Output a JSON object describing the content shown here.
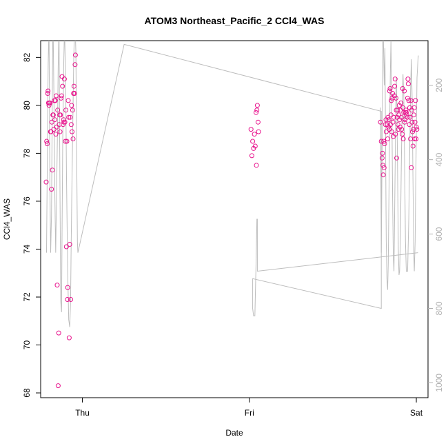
{
  "chart_data": {
    "type": "scatter",
    "title": "ATOM3 Northeast_Pacific_2 CCl4_WAS",
    "xlabel": "Date",
    "ylabel": "CCl4_WAS",
    "x_ticks": [
      {
        "day": 1,
        "label": "Thu"
      },
      {
        "day": 2,
        "label": "Fri"
      },
      {
        "day": 3,
        "label": "Sat"
      }
    ],
    "x_range": [
      0.75,
      3.07
    ],
    "y_range": [
      67.8,
      82.7
    ],
    "y_ticks": [
      68,
      70,
      72,
      74,
      76,
      78,
      80,
      82
    ],
    "y2_range": [
      80,
      1040
    ],
    "y2_ticks": [
      200,
      400,
      600,
      800,
      1000
    ],
    "y2_reversed": true,
    "point_color": "#e8128c",
    "line_color": "#bdbdbd",
    "grid": false,
    "series": [
      {
        "kind": "points",
        "points": [
          [
            0.783,
            76.8
          ],
          [
            0.786,
            78.5
          ],
          [
            0.789,
            78.4
          ],
          [
            0.792,
            80.5
          ],
          [
            0.794,
            80.6
          ],
          [
            0.797,
            80.1
          ],
          [
            0.8,
            80.0
          ],
          [
            0.803,
            80.1
          ],
          [
            0.806,
            80.1
          ],
          [
            0.809,
            78.9
          ],
          [
            0.812,
            78.9
          ],
          [
            0.815,
            76.5
          ],
          [
            0.817,
            79.3
          ],
          [
            0.82,
            77.3
          ],
          [
            0.823,
            79.6
          ],
          [
            0.826,
            79.6
          ],
          [
            0.829,
            79.0
          ],
          [
            0.832,
            80.2
          ],
          [
            0.835,
            79.4
          ],
          [
            0.838,
            80.2
          ],
          [
            0.841,
            78.8
          ],
          [
            0.843,
            80.4
          ],
          [
            0.846,
            79.1
          ],
          [
            0.849,
            72.5
          ],
          [
            0.852,
            79.8
          ],
          [
            0.855,
            68.3
          ],
          [
            0.858,
            70.5
          ],
          [
            0.861,
            79.2
          ],
          [
            0.864,
            79.6
          ],
          [
            0.866,
            78.9
          ],
          [
            0.869,
            79.6
          ],
          [
            0.872,
            80.3
          ],
          [
            0.875,
            80.4
          ],
          [
            0.878,
            81.2
          ],
          [
            0.881,
            80.8
          ],
          [
            0.884,
            79.2
          ],
          [
            0.887,
            79.4
          ],
          [
            0.889,
            79.3
          ],
          [
            0.892,
            81.1
          ],
          [
            0.895,
            79.3
          ],
          [
            0.898,
            78.5
          ],
          [
            0.901,
            79.8
          ],
          [
            0.904,
            74.1
          ],
          [
            0.907,
            78.5
          ],
          [
            0.91,
            71.9
          ],
          [
            0.912,
            72.4
          ],
          [
            0.915,
            80.2
          ],
          [
            0.918,
            79.5
          ],
          [
            0.921,
            70.3
          ],
          [
            0.924,
            74.2
          ],
          [
            0.927,
            79.5
          ],
          [
            0.93,
            71.9
          ],
          [
            0.933,
            79.2
          ],
          [
            0.935,
            80.0
          ],
          [
            0.938,
            78.9
          ],
          [
            0.941,
            79.8
          ],
          [
            0.944,
            78.6
          ],
          [
            0.947,
            80.5
          ],
          [
            0.95,
            80.8
          ],
          [
            0.953,
            80.5
          ],
          [
            0.956,
            81.7
          ],
          [
            0.958,
            82.1
          ],
          [
            2.01,
            79.0
          ],
          [
            2.015,
            77.9
          ],
          [
            2.02,
            78.5
          ],
          [
            2.025,
            78.2
          ],
          [
            2.03,
            78.8
          ],
          [
            2.035,
            78.3
          ],
          [
            2.04,
            79.7
          ],
          [
            2.042,
            77.5
          ],
          [
            2.045,
            79.8
          ],
          [
            2.048,
            80.0
          ],
          [
            2.052,
            79.3
          ],
          [
            2.055,
            78.9
          ],
          [
            2.785,
            79.3
          ],
          [
            2.79,
            78.5
          ],
          [
            2.795,
            77.8
          ],
          [
            2.797,
            78.0
          ],
          [
            2.8,
            77.5
          ],
          [
            2.802,
            77.1
          ],
          [
            2.805,
            78.5
          ],
          [
            2.807,
            77.4
          ],
          [
            2.81,
            78.4
          ],
          [
            2.815,
            79.2
          ],
          [
            2.818,
            79.4
          ],
          [
            2.82,
            78.9
          ],
          [
            2.825,
            79.2
          ],
          [
            2.828,
            78.6
          ],
          [
            2.83,
            79.5
          ],
          [
            2.833,
            79.1
          ],
          [
            2.835,
            79.4
          ],
          [
            2.838,
            79.0
          ],
          [
            2.84,
            80.6
          ],
          [
            2.843,
            80.7
          ],
          [
            2.845,
            79.2
          ],
          [
            2.848,
            79.6
          ],
          [
            2.85,
            80.2
          ],
          [
            2.853,
            78.9
          ],
          [
            2.855,
            80.3
          ],
          [
            2.858,
            80.5
          ],
          [
            2.86,
            79.3
          ],
          [
            2.862,
            78.7
          ],
          [
            2.865,
            79.5
          ],
          [
            2.868,
            80.4
          ],
          [
            2.87,
            80.8
          ],
          [
            2.873,
            81.1
          ],
          [
            2.875,
            78.8
          ],
          [
            2.878,
            80.3
          ],
          [
            2.88,
            79.8
          ],
          [
            2.882,
            77.8
          ],
          [
            2.885,
            79.5
          ],
          [
            2.888,
            79.8
          ],
          [
            2.89,
            79.2
          ],
          [
            2.893,
            79.0
          ],
          [
            2.895,
            79.6
          ],
          [
            2.898,
            80.0
          ],
          [
            2.9,
            79.4
          ],
          [
            2.902,
            79.1
          ],
          [
            2.905,
            79.8
          ],
          [
            2.908,
            80.1
          ],
          [
            2.91,
            79.5
          ],
          [
            2.912,
            79.0
          ],
          [
            2.915,
            78.8
          ],
          [
            2.918,
            80.7
          ],
          [
            2.92,
            79.9
          ],
          [
            2.922,
            78.6
          ],
          [
            2.925,
            79.7
          ],
          [
            2.928,
            80.6
          ],
          [
            2.93,
            79.3
          ],
          [
            2.932,
            79.4
          ],
          [
            2.935,
            79.7
          ],
          [
            2.938,
            79.8
          ],
          [
            2.94,
            79.7
          ],
          [
            2.942,
            79.6
          ],
          [
            2.945,
            79.5
          ],
          [
            2.948,
            80.3
          ],
          [
            2.95,
            81.1
          ],
          [
            2.952,
            80.9
          ],
          [
            2.955,
            80.2
          ],
          [
            2.958,
            79.2
          ],
          [
            2.96,
            79.9
          ],
          [
            2.962,
            79.5
          ],
          [
            2.965,
            78.6
          ],
          [
            2.968,
            80.2
          ],
          [
            2.97,
            77.4
          ],
          [
            2.972,
            79.8
          ],
          [
            2.975,
            79.3
          ],
          [
            2.977,
            78.9
          ],
          [
            2.98,
            78.3
          ],
          [
            2.982,
            79.0
          ],
          [
            2.985,
            79.6
          ],
          [
            2.988,
            79.9
          ],
          [
            2.99,
            78.6
          ],
          [
            2.992,
            79.3
          ],
          [
            2.995,
            80.2
          ],
          [
            2.998,
            78.6
          ],
          [
            3.0,
            79.1
          ],
          [
            3.003,
            79.0
          ]
        ]
      },
      {
        "kind": "altitude-line",
        "points": [
          [
            0.785,
            650
          ],
          [
            0.795,
            140
          ],
          [
            0.8,
            40
          ],
          [
            0.805,
            450
          ],
          [
            0.81,
            650
          ],
          [
            0.815,
            550
          ],
          [
            0.82,
            200
          ],
          [
            0.823,
            40
          ],
          [
            0.825,
            60
          ],
          [
            0.83,
            260
          ],
          [
            0.835,
            500
          ],
          [
            0.84,
            650
          ],
          [
            0.845,
            500
          ],
          [
            0.85,
            350
          ],
          [
            0.855,
            150
          ],
          [
            0.86,
            40
          ],
          [
            0.865,
            450
          ],
          [
            0.87,
            780
          ],
          [
            0.875,
            810
          ],
          [
            0.878,
            600
          ],
          [
            0.882,
            350
          ],
          [
            0.888,
            150
          ],
          [
            0.893,
            40
          ],
          [
            0.9,
            200
          ],
          [
            0.905,
            450
          ],
          [
            0.912,
            700
          ],
          [
            0.918,
            830
          ],
          [
            0.924,
            850
          ],
          [
            0.929,
            780
          ],
          [
            0.933,
            620
          ],
          [
            0.938,
            450
          ],
          [
            0.943,
            280
          ],
          [
            0.948,
            130
          ],
          [
            0.952,
            60
          ],
          [
            0.956,
            40
          ],
          [
            0.961,
            110
          ],
          [
            0.966,
            400
          ],
          [
            0.97,
            620
          ],
          [
            0.973,
            650
          ],
          [
            1.25,
            90
          ],
          [
            2.79,
            270
          ],
          [
            2.79,
            800
          ],
          [
            2.02,
            720
          ],
          [
            2.02,
            800
          ],
          [
            2.025,
            820
          ],
          [
            2.033,
            820
          ],
          [
            2.04,
            680
          ],
          [
            2.045,
            560
          ],
          [
            2.048,
            560
          ],
          [
            2.048,
            700
          ],
          [
            3.01,
            650
          ]
        ]
      },
      {
        "kind": "altitude-line",
        "points": [
          [
            2.785,
            260
          ],
          [
            2.79,
            650
          ],
          [
            2.795,
            380
          ],
          [
            2.8,
            40
          ],
          [
            2.803,
            80
          ],
          [
            2.808,
            200
          ],
          [
            2.812,
            100
          ],
          [
            2.816,
            380
          ],
          [
            2.82,
            620
          ],
          [
            2.824,
            720
          ],
          [
            2.828,
            750
          ],
          [
            2.832,
            680
          ],
          [
            2.836,
            500
          ],
          [
            2.84,
            320
          ],
          [
            2.844,
            170
          ],
          [
            2.848,
            80
          ],
          [
            2.85,
            140
          ],
          [
            2.854,
            300
          ],
          [
            2.858,
            500
          ],
          [
            2.862,
            660
          ],
          [
            2.866,
            700
          ],
          [
            2.868,
            620
          ],
          [
            2.872,
            470
          ],
          [
            2.876,
            300
          ],
          [
            2.88,
            180
          ],
          [
            2.884,
            260
          ],
          [
            2.888,
            440
          ],
          [
            2.892,
            640
          ],
          [
            2.896,
            710
          ],
          [
            2.9,
            700
          ],
          [
            2.905,
            600
          ],
          [
            2.91,
            420
          ],
          [
            2.915,
            250
          ],
          [
            2.92,
            170
          ],
          [
            2.925,
            230
          ],
          [
            2.93,
            420
          ],
          [
            2.935,
            620
          ],
          [
            2.94,
            700
          ],
          [
            2.948,
            700
          ],
          [
            2.955,
            560
          ],
          [
            2.96,
            380
          ],
          [
            2.965,
            220
          ],
          [
            2.97,
            130
          ],
          [
            2.975,
            240
          ],
          [
            2.98,
            460
          ],
          [
            2.985,
            650
          ],
          [
            2.988,
            700
          ],
          [
            2.993,
            620
          ],
          [
            2.998,
            400
          ],
          [
            3.004,
            180
          ],
          [
            3.01,
            130
          ],
          [
            3.012,
            120
          ]
        ]
      }
    ]
  }
}
